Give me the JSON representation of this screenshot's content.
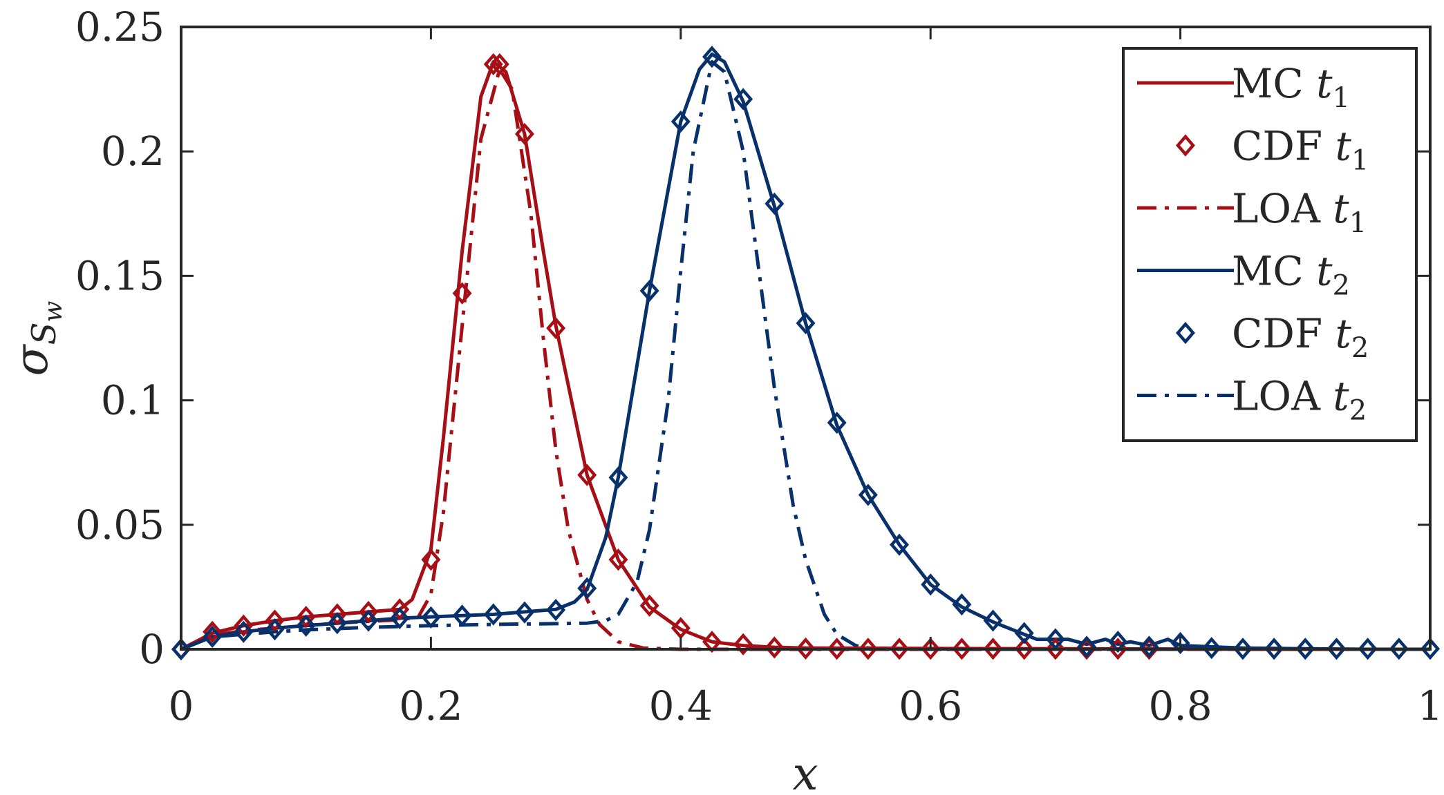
{
  "chart_data": {
    "type": "line",
    "xlabel": "x",
    "ylabel": "σ",
    "ylabel_sub": "S",
    "ylabel_subsub": "w",
    "xlim": [
      0,
      1
    ],
    "ylim": [
      0,
      0.25
    ],
    "xticks": [
      0,
      0.2,
      0.4,
      0.6,
      0.8,
      1
    ],
    "xtick_labels": [
      "0",
      "0.2",
      "0.4",
      "0.6",
      "0.8",
      "1"
    ],
    "yticks": [
      0,
      0.05,
      0.1,
      0.15,
      0.2,
      0.25
    ],
    "ytick_labels": [
      "0",
      "0.05",
      "0.1",
      "0.15",
      "0.2",
      "0.25"
    ],
    "grid": false,
    "legend_position": "top-right",
    "colors": {
      "red": "#a50f15",
      "blue": "#08306b"
    },
    "series": [
      {
        "name": "MC t1",
        "label_main": "MC ",
        "label_var": "t",
        "label_sub": "1",
        "color": "#a50f15",
        "style": "solid",
        "x": [
          0,
          0.025,
          0.05,
          0.075,
          0.1,
          0.125,
          0.15,
          0.175,
          0.185,
          0.2,
          0.21,
          0.225,
          0.24,
          0.25,
          0.26,
          0.275,
          0.29,
          0.3,
          0.325,
          0.35,
          0.375,
          0.4,
          0.425,
          0.45,
          0.475,
          0.5,
          0.6,
          0.7,
          0.8,
          0.9,
          1.0
        ],
        "y": [
          0,
          0.0065,
          0.0095,
          0.0115,
          0.013,
          0.014,
          0.015,
          0.016,
          0.02,
          0.04,
          0.085,
          0.16,
          0.222,
          0.236,
          0.232,
          0.207,
          0.16,
          0.13,
          0.07,
          0.036,
          0.017,
          0.008,
          0.003,
          0.0015,
          0.0008,
          0.0005,
          0.0003,
          0.0002,
          0.0001,
          0,
          0
        ]
      },
      {
        "name": "CDF t1",
        "label_main": "CDF ",
        "label_var": "t",
        "label_sub": "1",
        "color": "#a50f15",
        "style": "markers",
        "x": [
          0,
          0.025,
          0.05,
          0.075,
          0.1,
          0.125,
          0.15,
          0.175,
          0.2,
          0.225,
          0.25,
          0.255,
          0.275,
          0.3,
          0.325,
          0.35,
          0.375,
          0.4,
          0.425,
          0.45,
          0.475,
          0.5,
          0.525,
          0.55,
          0.575,
          0.6,
          0.625,
          0.65,
          0.675,
          0.7,
          0.725,
          0.75,
          0.775
        ],
        "y": [
          0,
          0.007,
          0.0095,
          0.0115,
          0.013,
          0.014,
          0.015,
          0.016,
          0.036,
          0.143,
          0.235,
          0.235,
          0.207,
          0.129,
          0.07,
          0.036,
          0.0175,
          0.0085,
          0.003,
          0.002,
          0.0007,
          0.0003,
          0.0002,
          0.0002,
          0.0002,
          0.0002,
          0.0002,
          0.0002,
          0.0002,
          0.0002,
          0.0002,
          0.0002,
          0.0002
        ]
      },
      {
        "name": "LOA t1",
        "label_main": "LOA ",
        "label_var": "t",
        "label_sub": "1",
        "color": "#a50f15",
        "style": "dashdot",
        "x": [
          0,
          0.025,
          0.05,
          0.075,
          0.1,
          0.125,
          0.15,
          0.175,
          0.19,
          0.2,
          0.21,
          0.225,
          0.24,
          0.255,
          0.265,
          0.28,
          0.29,
          0.3,
          0.31,
          0.325,
          0.335,
          0.35,
          0.37,
          0.4,
          0.5,
          1.0
        ],
        "y": [
          0,
          0.0055,
          0.0075,
          0.0085,
          0.0095,
          0.0105,
          0.0112,
          0.0118,
          0.013,
          0.022,
          0.055,
          0.13,
          0.205,
          0.233,
          0.225,
          0.175,
          0.125,
          0.08,
          0.048,
          0.02,
          0.01,
          0.003,
          0.0005,
          0,
          0,
          0
        ]
      },
      {
        "name": "MC t2",
        "label_main": "MC ",
        "label_var": "t",
        "label_sub": "2",
        "color": "#08306b",
        "style": "solid",
        "x": [
          0,
          0.025,
          0.05,
          0.075,
          0.1,
          0.125,
          0.15,
          0.175,
          0.2,
          0.225,
          0.25,
          0.275,
          0.3,
          0.315,
          0.325,
          0.34,
          0.35,
          0.375,
          0.4,
          0.415,
          0.425,
          0.435,
          0.45,
          0.475,
          0.5,
          0.525,
          0.55,
          0.575,
          0.6,
          0.625,
          0.65,
          0.675,
          0.685,
          0.7,
          0.71,
          0.725,
          0.74,
          0.75,
          0.76,
          0.775,
          0.79,
          0.8,
          0.85,
          0.9,
          0.95,
          1.0
        ],
        "y": [
          0,
          0.005,
          0.007,
          0.0085,
          0.0095,
          0.0105,
          0.0115,
          0.0125,
          0.013,
          0.0135,
          0.014,
          0.015,
          0.016,
          0.019,
          0.024,
          0.045,
          0.069,
          0.144,
          0.212,
          0.233,
          0.239,
          0.236,
          0.22,
          0.178,
          0.131,
          0.09,
          0.062,
          0.042,
          0.026,
          0.017,
          0.011,
          0.006,
          0.004,
          0.004,
          0.004,
          0.002,
          0.004,
          0.002,
          0.003,
          0.0015,
          0.004,
          0.0015,
          0.0005,
          0.0002,
          0,
          0
        ]
      },
      {
        "name": "CDF t2",
        "label_main": "CDF ",
        "label_var": "t",
        "label_sub": "2",
        "color": "#08306b",
        "style": "markers",
        "x": [
          0,
          0.025,
          0.05,
          0.075,
          0.1,
          0.125,
          0.15,
          0.175,
          0.2,
          0.225,
          0.25,
          0.275,
          0.3,
          0.325,
          0.35,
          0.375,
          0.4,
          0.425,
          0.45,
          0.475,
          0.5,
          0.525,
          0.55,
          0.575,
          0.6,
          0.625,
          0.65,
          0.675,
          0.7,
          0.725,
          0.75,
          0.775,
          0.8,
          0.825,
          0.85,
          0.875,
          0.9,
          0.925,
          0.95,
          0.975,
          1.0
        ],
        "y": [
          0,
          0.005,
          0.007,
          0.008,
          0.0095,
          0.0105,
          0.0115,
          0.0125,
          0.0128,
          0.0135,
          0.014,
          0.0148,
          0.0158,
          0.0245,
          0.069,
          0.144,
          0.212,
          0.238,
          0.221,
          0.179,
          0.131,
          0.091,
          0.062,
          0.042,
          0.026,
          0.018,
          0.0115,
          0.0065,
          0.004,
          0.001,
          0.003,
          0.001,
          0.0025,
          0.0005,
          0.0002,
          0.0002,
          0.0002,
          0.0002,
          0.0002,
          0.0002,
          0.0002
        ]
      },
      {
        "name": "LOA t2",
        "label_main": "LOA ",
        "label_var": "t",
        "label_sub": "2",
        "color": "#08306b",
        "style": "dashdot",
        "x": [
          0,
          0.025,
          0.05,
          0.075,
          0.1,
          0.15,
          0.2,
          0.25,
          0.3,
          0.325,
          0.34,
          0.35,
          0.365,
          0.375,
          0.39,
          0.4,
          0.41,
          0.425,
          0.435,
          0.45,
          0.46,
          0.475,
          0.49,
          0.5,
          0.515,
          0.525,
          0.54,
          0.55,
          0.6,
          1.0
        ],
        "y": [
          0,
          0.005,
          0.006,
          0.007,
          0.0078,
          0.0088,
          0.0095,
          0.01,
          0.0103,
          0.0105,
          0.0115,
          0.014,
          0.027,
          0.048,
          0.1,
          0.152,
          0.2,
          0.236,
          0.232,
          0.2,
          0.162,
          0.105,
          0.058,
          0.036,
          0.014,
          0.006,
          0.0015,
          0.0005,
          0,
          0
        ]
      }
    ]
  }
}
